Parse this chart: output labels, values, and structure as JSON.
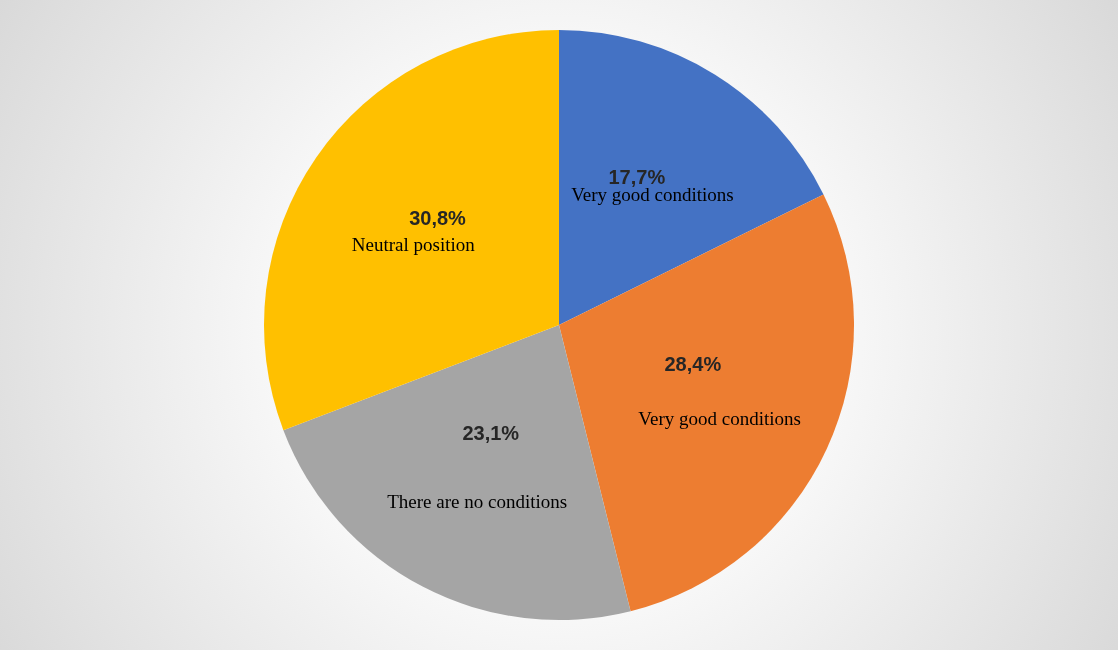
{
  "chart_data": {
    "type": "pie",
    "categories": [
      "Very good conditions",
      "Very good conditions",
      "There are no conditions",
      "Neutral position"
    ],
    "values": [
      17.7,
      28.4,
      23.1,
      30.8
    ],
    "value_labels": [
      "17,7%",
      "28,4%",
      "23,1%",
      "30,8%"
    ],
    "colors": [
      "#4472c4",
      "#ed7d31",
      "#a5a5a5",
      "#ffc000"
    ],
    "legend": false
  }
}
